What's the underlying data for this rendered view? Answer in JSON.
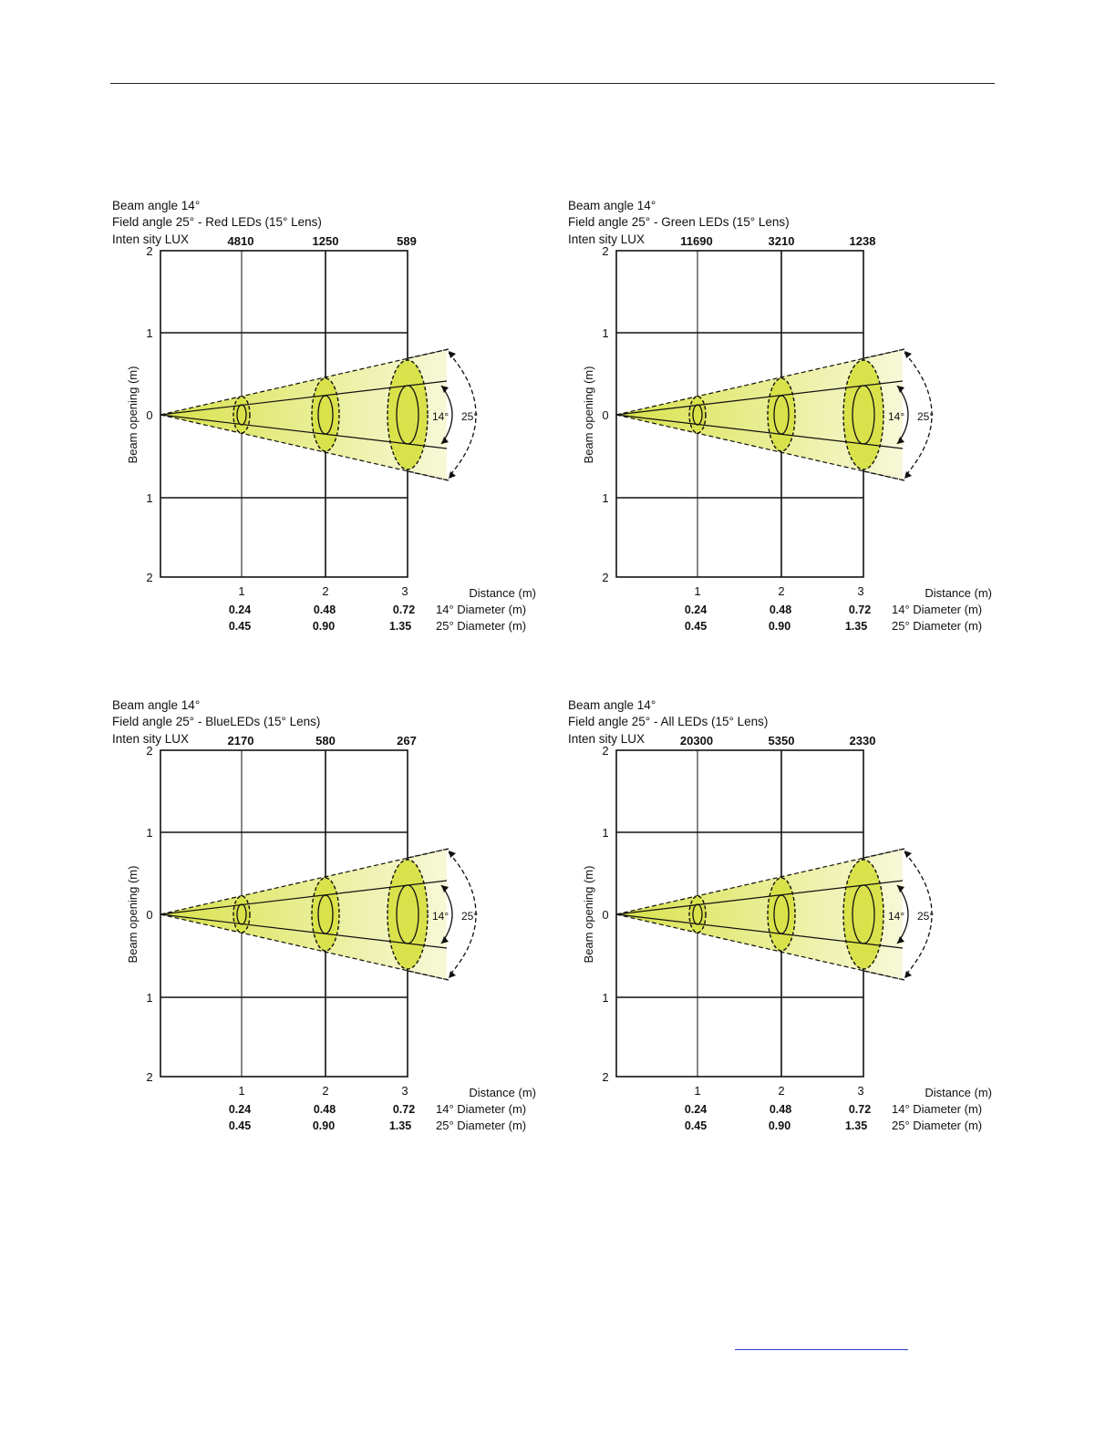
{
  "page": {
    "top_rule": true,
    "footer_link_text": ""
  },
  "colors": {
    "beam_fill": "#d9e24a",
    "beam_fade": "#f7f8d8",
    "lines": "#111111"
  },
  "panels": [
    {
      "header": {
        "line1": "Beam angle 14°",
        "line2": "Field angle 25° - Red LEDs (15° Lens)",
        "intensity_label": "Inten sity LUX"
      },
      "lux": [
        "4810",
        "1250",
        "589"
      ]
    },
    {
      "header": {
        "line1": "Beam angle 14°",
        "line2": "Field angle 25° - Green LEDs (15° Lens)",
        "intensity_label": "Inten sity LUX"
      },
      "lux": [
        "11690",
        "3210",
        "1238"
      ]
    },
    {
      "header": {
        "line1": "Beam angle 14°",
        "line2": "Field angle 25° - BlueLEDs (15° Lens)",
        "intensity_label": "Inten sity LUX"
      },
      "lux": [
        "2170",
        "580",
        "267"
      ]
    },
    {
      "header": {
        "line1": "Beam angle 14°",
        "line2": "Field angle 25° - All LEDs (15° Lens)",
        "intensity_label": "Inten sity LUX"
      },
      "lux": [
        "20300",
        "5350",
        "2330"
      ]
    }
  ],
  "axes": {
    "ylabel": "Beam opening (m)",
    "y_ticks": [
      "2",
      "1",
      "0",
      "1",
      "2"
    ],
    "x_ticks": [
      "1",
      "2",
      "3"
    ],
    "distance_label": "Distance (m)",
    "diameter14_label": "14° Diameter (m)",
    "diameter25_label": "25° Diameter (m)",
    "diameter14_values": [
      "0.24",
      "0.48",
      "0.72"
    ],
    "diameter25_values": [
      "0.45",
      "0.90",
      "1.35"
    ],
    "angle14": "14°",
    "angle25": "25°"
  }
}
